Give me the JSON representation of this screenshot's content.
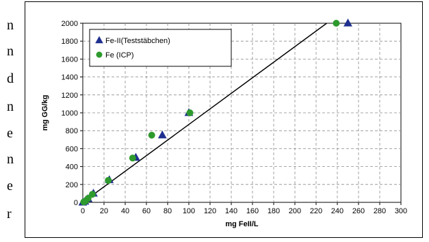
{
  "margin_text": [
    "n",
    "n",
    "d",
    "n",
    "e",
    "n",
    "e",
    "r"
  ],
  "chart_data": {
    "type": "scatter",
    "title": "",
    "xlabel": "mg FeII/L",
    "ylabel": "mg GG/kg",
    "xlim": [
      0,
      300
    ],
    "ylim": [
      0,
      2000
    ],
    "xticks": [
      0,
      20,
      40,
      60,
      80,
      100,
      120,
      140,
      160,
      180,
      200,
      220,
      240,
      260,
      280,
      300
    ],
    "yticks": [
      0,
      200,
      400,
      600,
      800,
      1000,
      1200,
      1400,
      1600,
      1800,
      2000
    ],
    "grid": true,
    "legend_position": "top-left",
    "series": [
      {
        "name": "Fe-II(Teststäbchen)",
        "marker": "triangle",
        "color": "#1f2f8f",
        "points": [
          [
            0,
            0
          ],
          [
            2,
            10
          ],
          [
            5,
            40
          ],
          [
            10,
            100
          ],
          [
            25,
            250
          ],
          [
            50,
            500
          ],
          [
            75,
            750
          ],
          [
            100,
            1000
          ],
          [
            250,
            2000
          ]
        ]
      },
      {
        "name": "Fe (ICP)",
        "marker": "circle",
        "color": "#2e9a2e",
        "points": [
          [
            1,
            5
          ],
          [
            2.5,
            15
          ],
          [
            5,
            45
          ],
          [
            9,
            90
          ],
          [
            24,
            245
          ],
          [
            47,
            495
          ],
          [
            65,
            750
          ],
          [
            101,
            1000
          ],
          [
            239,
            2000
          ]
        ]
      }
    ],
    "trendline": {
      "color": "#000000",
      "points": [
        [
          0,
          0
        ],
        [
          230,
          2000
        ]
      ]
    }
  }
}
